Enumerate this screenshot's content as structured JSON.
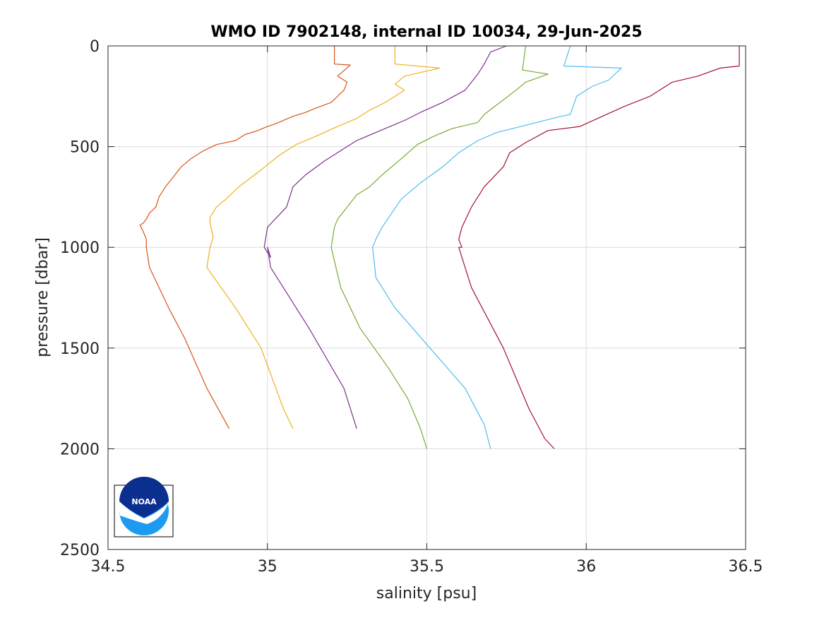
{
  "chart_data": {
    "type": "line",
    "title": "WMO ID 7902148, internal ID 10034, 29-Jun-2025",
    "xlabel": "salinity [psu]",
    "ylabel": "pressure [dbar]",
    "xlim": [
      34.5,
      36.5
    ],
    "ylim": [
      0,
      2500
    ],
    "y_reversed": true,
    "grid": true,
    "xticks": [
      "34.5",
      "35",
      "35.5",
      "36",
      "36.5"
    ],
    "yticks": [
      "0",
      "500",
      "1000",
      "1500",
      "2000",
      "2500"
    ],
    "logo": "NOAA",
    "series": [
      {
        "color": "#D95319",
        "x": [
          35.21,
          35.21,
          35.26,
          35.22,
          35.25,
          35.24,
          35.2,
          35.15,
          35.12,
          35.08,
          35.02,
          35.0,
          34.97,
          34.93,
          34.9,
          34.84,
          34.8,
          34.76,
          34.73,
          34.7,
          34.68,
          34.66,
          34.65,
          34.63,
          34.62,
          34.61,
          34.6,
          34.61,
          34.62,
          34.62,
          34.63,
          34.69,
          34.74,
          34.81,
          34.88
        ],
        "y": [
          0,
          90,
          95,
          150,
          180,
          220,
          280,
          310,
          330,
          350,
          390,
          400,
          420,
          440,
          470,
          490,
          520,
          560,
          600,
          660,
          700,
          750,
          800,
          830,
          860,
          880,
          890,
          920,
          960,
          1000,
          1100,
          1300,
          1450,
          1700,
          1900
        ]
      },
      {
        "color": "#EDB120",
        "x": [
          35.4,
          35.4,
          35.54,
          35.43,
          35.4,
          35.43,
          35.37,
          35.32,
          35.28,
          35.22,
          35.15,
          35.09,
          35.04,
          35.0,
          34.96,
          34.91,
          34.87,
          34.84,
          34.82,
          34.82,
          34.83,
          34.82,
          34.81,
          34.9,
          34.98,
          35.05,
          35.08
        ],
        "y": [
          0,
          90,
          110,
          150,
          190,
          220,
          280,
          320,
          360,
          400,
          450,
          490,
          540,
          590,
          640,
          700,
          760,
          800,
          850,
          880,
          950,
          1000,
          1100,
          1300,
          1500,
          1800,
          1900
        ]
      },
      {
        "color": "#7E2F8E",
        "x": [
          35.75,
          35.7,
          35.68,
          35.66,
          35.62,
          35.55,
          35.48,
          35.43,
          35.4,
          35.34,
          35.28,
          35.23,
          35.18,
          35.12,
          35.08,
          35.06,
          35.03,
          35.0,
          34.99,
          35.01,
          35.0,
          35.01,
          35.13,
          35.24,
          35.28
        ],
        "y": [
          0,
          30,
          90,
          140,
          220,
          280,
          330,
          370,
          390,
          430,
          470,
          520,
          570,
          640,
          700,
          800,
          850,
          900,
          1000,
          1050,
          1000,
          1100,
          1400,
          1700,
          1900
        ]
      },
      {
        "color": "#77AC30",
        "x": [
          35.81,
          35.8,
          35.88,
          35.81,
          35.78,
          35.73,
          35.68,
          35.66,
          35.58,
          35.52,
          35.47,
          35.42,
          35.36,
          35.32,
          35.28,
          35.24,
          35.22,
          35.21,
          35.2,
          35.23,
          35.29,
          35.38,
          35.44,
          35.48,
          35.5
        ],
        "y": [
          0,
          120,
          140,
          180,
          220,
          280,
          340,
          380,
          410,
          450,
          490,
          560,
          640,
          700,
          740,
          820,
          860,
          900,
          1000,
          1200,
          1400,
          1600,
          1750,
          1900,
          2000
        ]
      },
      {
        "color": "#4DBEEE",
        "x": [
          35.95,
          35.93,
          36.11,
          36.07,
          36.02,
          35.97,
          35.95,
          35.92,
          35.82,
          35.72,
          35.66,
          35.6,
          35.55,
          35.48,
          35.42,
          35.39,
          35.36,
          35.34,
          35.33,
          35.34,
          35.4,
          35.51,
          35.62,
          35.68,
          35.7
        ],
        "y": [
          0,
          100,
          110,
          170,
          200,
          250,
          340,
          350,
          390,
          430,
          470,
          530,
          600,
          680,
          760,
          830,
          900,
          960,
          1000,
          1150,
          1300,
          1500,
          1700,
          1880,
          2000
        ]
      },
      {
        "color": "#A2142F",
        "x": [
          36.48,
          36.48,
          36.42,
          36.35,
          36.27,
          36.2,
          36.12,
          36.05,
          35.98,
          35.88,
          35.81,
          35.76,
          35.74,
          35.68,
          35.64,
          35.61,
          35.6,
          35.61,
          35.6,
          35.64,
          35.74,
          35.82,
          35.87,
          35.9
        ],
        "y": [
          0,
          100,
          110,
          150,
          180,
          250,
          300,
          350,
          400,
          420,
          480,
          530,
          600,
          700,
          800,
          900,
          960,
          1000,
          1000,
          1200,
          1500,
          1800,
          1950,
          2000
        ]
      }
    ]
  }
}
